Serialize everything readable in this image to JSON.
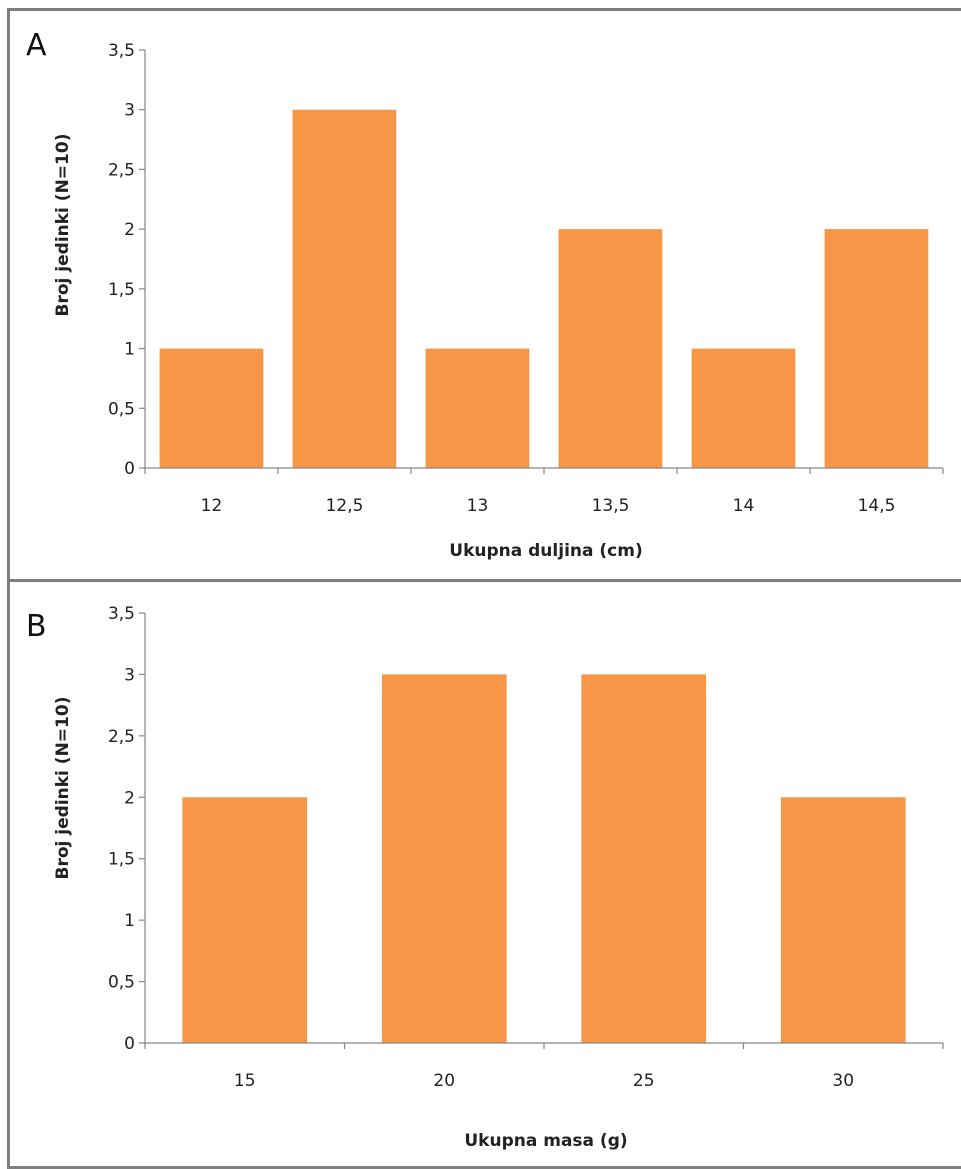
{
  "colors": {
    "bar": "#f79646",
    "axis": "#868686",
    "border": "#7f7f7f",
    "text": "#222222"
  },
  "chart_data": [
    {
      "type": "bar",
      "panel_label": "A",
      "categories": [
        "12",
        "12,5",
        "13",
        "13,5",
        "14",
        "14,5"
      ],
      "values": [
        1,
        3,
        1,
        2,
        1,
        2
      ],
      "xlabel": "Ukupna duljina (cm)",
      "ylabel": "Broj jedinki (N=10)",
      "ylim": [
        0,
        3.5
      ],
      "yticks": [
        "0",
        "0,5",
        "1",
        "1,5",
        "2",
        "2,5",
        "3",
        "3,5"
      ],
      "grid": false,
      "legend": "none"
    },
    {
      "type": "bar",
      "panel_label": "B",
      "categories": [
        "15",
        "20",
        "25",
        "30"
      ],
      "values": [
        2,
        3,
        3,
        2
      ],
      "xlabel": "Ukupna masa (g)",
      "ylabel": "Broj jedinki (N=10)",
      "ylim": [
        0,
        3.5
      ],
      "yticks": [
        "0",
        "0,5",
        "1",
        "1,5",
        "2",
        "2,5",
        "3",
        "3,5"
      ],
      "grid": false,
      "legend": "none"
    }
  ]
}
